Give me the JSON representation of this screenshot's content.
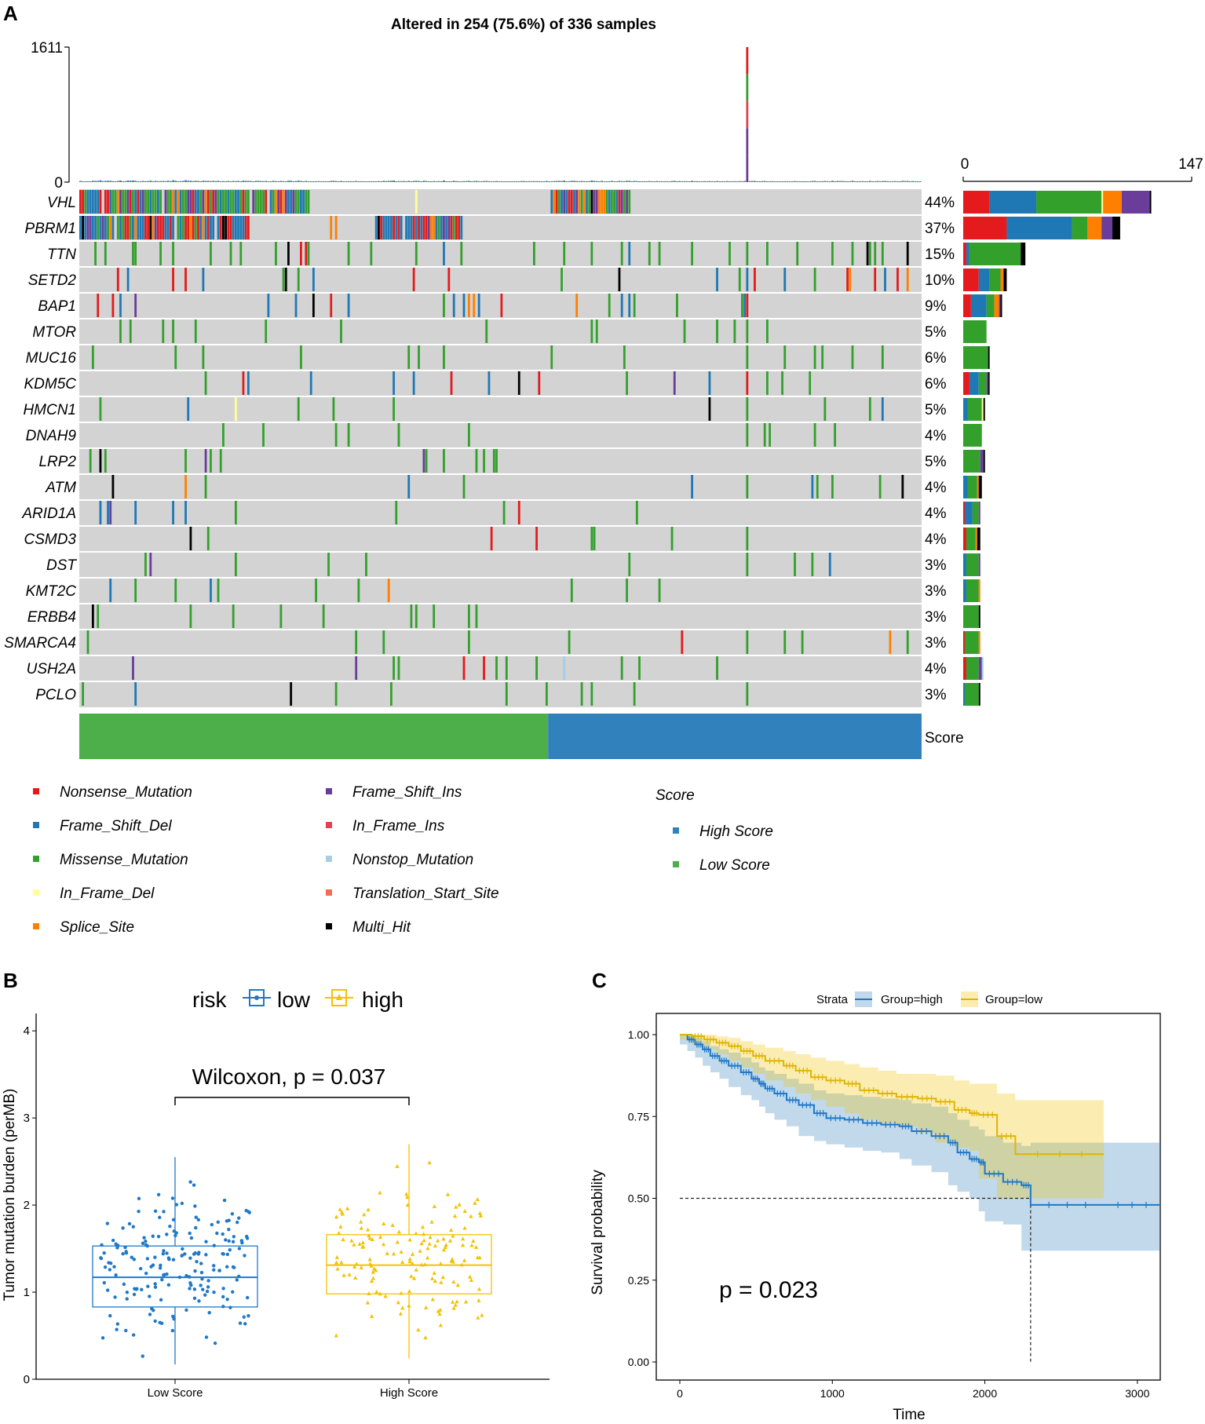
{
  "panel_labels": {
    "a": "A",
    "b": "B",
    "c": "C"
  },
  "colors": {
    "Nonsense_Mutation": "#e41a1c",
    "Frame_Shift_Del": "#1f78b4",
    "Missense_Mutation": "#33a02c",
    "In_Frame_Del": "#ffff99",
    "Splice_Site": "#ff7f00",
    "Frame_Shift_Ins": "#6a3d9a",
    "In_Frame_Ins": "#e0434f",
    "Nonstop_Mutation": "#a6cee3",
    "Translation_Start_Site": "#f26c4f",
    "Multi_Hit": "#000000",
    "High Score": "#3181bd",
    "Low Score": "#4daf4a",
    "risk_low": "#1f78c8",
    "risk_high": "#f2c200",
    "grid_bg": "#d3d3d3"
  },
  "chart_data": [
    {
      "type": "oncoplot",
      "title": "Altered in 254 (75.6%) of 336 samples",
      "samples_total": 336,
      "samples_altered": 254,
      "tmb_axis": {
        "max_label": "1611",
        "min_label": "0",
        "max": 1611
      },
      "gene_bar_axis": {
        "min_label": "0",
        "max_label": "147",
        "max": 147
      },
      "genes": [
        {
          "name": "VHL",
          "pct": "44%",
          "counts": {
            "Nonsense_Mutation": 17,
            "Frame_Shift_Del": 30,
            "Missense_Mutation": 42,
            "In_Frame_Del": 1,
            "Splice_Site": 12,
            "Frame_Shift_Ins": 18,
            "Multi_Hit": 1
          }
        },
        {
          "name": "PBRM1",
          "pct": "37%",
          "counts": {
            "Nonsense_Mutation": 28,
            "Frame_Shift_Del": 42,
            "Missense_Mutation": 10,
            "Splice_Site": 9,
            "Frame_Shift_Ins": 7,
            "Multi_Hit": 5
          }
        },
        {
          "name": "TTN",
          "pct": "15%",
          "counts": {
            "Nonsense_Mutation": 2,
            "Frame_Shift_Del": 2,
            "Missense_Mutation": 33,
            "Multi_Hit": 3
          }
        },
        {
          "name": "SETD2",
          "pct": "10%",
          "counts": {
            "Nonsense_Mutation": 10,
            "Frame_Shift_Del": 7,
            "Missense_Mutation": 7,
            "Splice_Site": 2,
            "Multi_Hit": 2
          }
        },
        {
          "name": "BAP1",
          "pct": "9%",
          "counts": {
            "Nonsense_Mutation": 5,
            "Frame_Shift_Del": 10,
            "Missense_Mutation": 5,
            "Splice_Site": 3,
            "Frame_Shift_Ins": 1,
            "Multi_Hit": 1
          }
        },
        {
          "name": "MTOR",
          "pct": "5%",
          "counts": {
            "Missense_Mutation": 15
          }
        },
        {
          "name": "MUC16",
          "pct": "6%",
          "counts": {
            "Missense_Mutation": 16,
            "Multi_Hit": 1
          }
        },
        {
          "name": "KDM5C",
          "pct": "6%",
          "counts": {
            "Nonsense_Mutation": 4,
            "Frame_Shift_Del": 6,
            "Missense_Mutation": 5,
            "Frame_Shift_Ins": 1,
            "Multi_Hit": 1
          }
        },
        {
          "name": "HMCN1",
          "pct": "5%",
          "counts": {
            "Frame_Shift_Del": 3,
            "Missense_Mutation": 9,
            "In_Frame_Del": 1,
            "Multi_Hit": 1
          }
        },
        {
          "name": "DNAH9",
          "pct": "4%",
          "counts": {
            "Missense_Mutation": 12
          }
        },
        {
          "name": "LRP2",
          "pct": "5%",
          "counts": {
            "Missense_Mutation": 11,
            "Frame_Shift_Ins": 2,
            "Multi_Hit": 1
          }
        },
        {
          "name": "ATM",
          "pct": "4%",
          "counts": {
            "Frame_Shift_Del": 3,
            "Missense_Mutation": 6,
            "Splice_Site": 1,
            "Multi_Hit": 2
          }
        },
        {
          "name": "ARID1A",
          "pct": "4%",
          "counts": {
            "Frame_Shift_Del": 5,
            "Missense_Mutation": 4,
            "Frame_Shift_Ins": 1,
            "Nonsense_Mutation": 1
          }
        },
        {
          "name": "CSMD3",
          "pct": "4%",
          "counts": {
            "Nonsense_Mutation": 2,
            "Missense_Mutation": 6,
            "Splice_Site": 1,
            "Multi_Hit": 2
          }
        },
        {
          "name": "DST",
          "pct": "3%",
          "counts": {
            "Frame_Shift_Del": 2,
            "Missense_Mutation": 8,
            "Frame_Shift_Ins": 1
          }
        },
        {
          "name": "KMT2C",
          "pct": "3%",
          "counts": {
            "Frame_Shift_Del": 2,
            "Missense_Mutation": 8,
            "Splice_Site": 1
          }
        },
        {
          "name": "ERBB4",
          "pct": "3%",
          "counts": {
            "Missense_Mutation": 10,
            "Multi_Hit": 1
          }
        },
        {
          "name": "SMARCA4",
          "pct": "3%",
          "counts": {
            "Missense_Mutation": 9,
            "Nonsense_Mutation": 1,
            "Splice_Site": 1
          }
        },
        {
          "name": "USH2A",
          "pct": "4%",
          "counts": {
            "Nonsense_Mutation": 2,
            "Missense_Mutation": 8,
            "Frame_Shift_Ins": 2,
            "Nonstop_Mutation": 1
          }
        },
        {
          "name": "PCLO",
          "pct": "3%",
          "counts": {
            "Missense_Mutation": 9,
            "Frame_Shift_Del": 1,
            "Multi_Hit": 1
          }
        }
      ],
      "score_bar": {
        "label": "Score",
        "groups": [
          {
            "name": "Low Score",
            "n_samples": 187
          },
          {
            "name": "High Score",
            "n_samples": 149
          }
        ]
      },
      "legend_variants": [
        "Nonsense_Mutation",
        "Frame_Shift_Del",
        "Missense_Mutation",
        "In_Frame_Del",
        "Splice_Site",
        "Frame_Shift_Ins",
        "In_Frame_Ins",
        "Nonstop_Mutation",
        "Translation_Start_Site",
        "Multi_Hit"
      ],
      "legend_score": {
        "title": "Score",
        "items": [
          "High Score",
          "Low Score"
        ]
      }
    },
    {
      "type": "box",
      "legend_title": "risk",
      "legend_items": [
        "low",
        "high"
      ],
      "annotation": "Wilcoxon, p = 0.037",
      "ylabel": "Tumor mutation burden (perMB)",
      "categories": [
        "Low Score",
        "High Score"
      ],
      "ylim": [
        0,
        4.2
      ],
      "yticks": [
        0,
        1,
        2,
        3,
        4
      ],
      "boxes": [
        {
          "group": "Low Score",
          "q1": 0.83,
          "median": 1.17,
          "q3": 1.53,
          "whisker_low": 0.17,
          "whisker_high": 2.55
        },
        {
          "group": "High Score",
          "q1": 0.98,
          "median": 1.31,
          "q3": 1.66,
          "whisker_low": 0.24,
          "whisker_high": 2.7
        }
      ]
    },
    {
      "type": "line",
      "subtype": "kaplan-meier",
      "legend_title": "Strata",
      "legend_items": [
        "Group=high",
        "Group=low"
      ],
      "annotation": "p = 0.023",
      "xlabel": "Time",
      "ylabel": "Survival probability",
      "xlim": [
        0,
        3150
      ],
      "ylim": [
        0,
        1
      ],
      "xticks": [
        0,
        1000,
        2000,
        3000
      ],
      "yticks": [
        "0.00",
        "0.25",
        "0.50",
        "0.75",
        "1.00"
      ],
      "median_survival_high": 2300,
      "series": [
        {
          "name": "Group=high",
          "x": [
            0,
            50,
            100,
            150,
            200,
            260,
            320,
            400,
            470,
            520,
            560,
            620,
            700,
            780,
            880,
            960,
            1080,
            1200,
            1320,
            1440,
            1520,
            1650,
            1760,
            1820,
            1900,
            1960,
            2000,
            2120,
            2240,
            2300,
            2780,
            3150
          ],
          "y": [
            1.0,
            0.985,
            0.97,
            0.955,
            0.935,
            0.92,
            0.905,
            0.885,
            0.865,
            0.85,
            0.835,
            0.82,
            0.8,
            0.785,
            0.76,
            0.745,
            0.74,
            0.73,
            0.725,
            0.72,
            0.705,
            0.69,
            0.67,
            0.64,
            0.62,
            0.61,
            0.575,
            0.55,
            0.54,
            0.48,
            0.48,
            0.48
          ],
          "ci_lower": [
            1.0,
            0.97,
            0.95,
            0.93,
            0.905,
            0.885,
            0.865,
            0.84,
            0.815,
            0.8,
            0.78,
            0.76,
            0.74,
            0.72,
            0.69,
            0.675,
            0.665,
            0.655,
            0.645,
            0.64,
            0.62,
            0.6,
            0.58,
            0.54,
            0.52,
            0.5,
            0.46,
            0.43,
            0.42,
            0.34,
            0.34,
            0.34
          ],
          "ci_upper": [
            1.0,
            1.0,
            0.99,
            0.98,
            0.965,
            0.955,
            0.945,
            0.93,
            0.915,
            0.9,
            0.89,
            0.88,
            0.865,
            0.85,
            0.83,
            0.82,
            0.815,
            0.81,
            0.805,
            0.8,
            0.79,
            0.78,
            0.76,
            0.74,
            0.72,
            0.71,
            0.69,
            0.67,
            0.66,
            0.67,
            0.67,
            0.67
          ]
        },
        {
          "name": "Group=low",
          "x": [
            0,
            80,
            160,
            240,
            320,
            400,
            480,
            560,
            680,
            760,
            860,
            960,
            1080,
            1180,
            1300,
            1420,
            1560,
            1680,
            1800,
            1900,
            1960,
            2080,
            2200,
            2780
          ],
          "y": [
            1.0,
            0.995,
            0.985,
            0.975,
            0.965,
            0.95,
            0.935,
            0.92,
            0.905,
            0.89,
            0.87,
            0.86,
            0.85,
            0.83,
            0.82,
            0.81,
            0.805,
            0.795,
            0.77,
            0.76,
            0.755,
            0.69,
            0.635,
            0.635
          ],
          "ci_lower": [
            1.0,
            0.985,
            0.97,
            0.955,
            0.94,
            0.92,
            0.9,
            0.88,
            0.86,
            0.84,
            0.82,
            0.8,
            0.78,
            0.76,
            0.74,
            0.73,
            0.72,
            0.7,
            0.67,
            0.655,
            0.645,
            0.56,
            0.5,
            0.5
          ],
          "ci_upper": [
            1.0,
            1.0,
            1.0,
            0.995,
            0.99,
            0.98,
            0.97,
            0.96,
            0.95,
            0.94,
            0.93,
            0.92,
            0.91,
            0.9,
            0.89,
            0.88,
            0.88,
            0.875,
            0.86,
            0.85,
            0.85,
            0.82,
            0.8,
            0.8
          ]
        }
      ]
    }
  ]
}
